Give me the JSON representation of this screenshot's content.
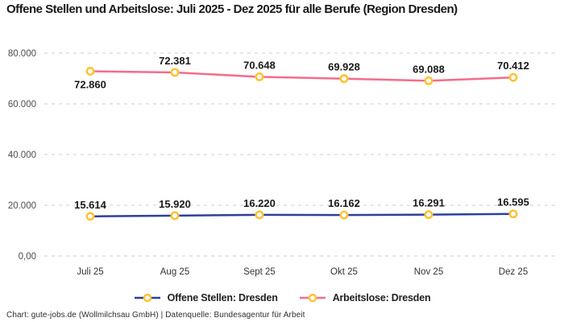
{
  "title": "Offene Stellen und Arbeitslose: Juli 2025 - Dez 2025 für alle Berufe (Region Dresden)",
  "footer": "Chart: gute-jobs.de (Wollmilchsau GmbH) | Datenquelle: Bundesagentur für Arbeit",
  "colors": {
    "open_positions_line": "#2E3F9E",
    "unemployed_line": "#F56C8A",
    "marker_ring": "#FFC233",
    "marker_fill": "#FFFFFF",
    "gridline": "#CCCCCC",
    "tick_label": "#4D4D4D",
    "data_label": "#1A1A1A"
  },
  "chart_data": {
    "type": "line",
    "title": "Offene Stellen und Arbeitslose: Juli 2025 - Dez 2025 für alle Berufe (Region Dresden)",
    "categories": [
      "Juli 25",
      "Aug 25",
      "Sept 25",
      "Okt 25",
      "Nov 25",
      "Dez 25"
    ],
    "series": [
      {
        "name": "Offene Stellen: Dresden",
        "color": "#2E3F9E",
        "values": [
          15614,
          15920,
          16220,
          16162,
          16291,
          16595
        ],
        "labels": [
          "15.614",
          "15.920",
          "16.220",
          "16.162",
          "16.291",
          "16.595"
        ],
        "label_below": [
          false,
          false,
          false,
          false,
          false,
          false
        ]
      },
      {
        "name": "Arbeitslose: Dresden",
        "color": "#F56C8A",
        "values": [
          72860,
          72381,
          70648,
          69928,
          69088,
          70412
        ],
        "labels": [
          "72.860",
          "72.381",
          "70.648",
          "69.928",
          "69.088",
          "70.412"
        ],
        "label_below": [
          true,
          false,
          false,
          false,
          false,
          false
        ]
      }
    ],
    "y_ticks": [
      {
        "value": 0,
        "label": "0,00"
      },
      {
        "value": 20000,
        "label": "20.000"
      },
      {
        "value": 40000,
        "label": "40.000"
      },
      {
        "value": 60000,
        "label": "60.000"
      },
      {
        "value": 80000,
        "label": "80.000"
      }
    ],
    "ylim": [
      0,
      80000
    ],
    "xlabel": "",
    "ylabel": "",
    "grid": "dashed-horizontal",
    "legend_position": "bottom"
  }
}
